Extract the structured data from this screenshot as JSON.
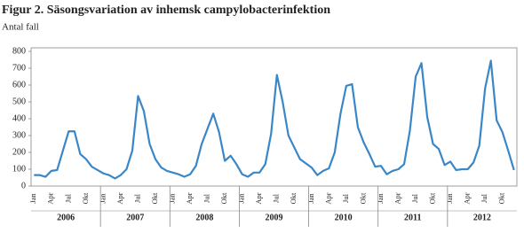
{
  "chart_data": {
    "type": "line",
    "title": "Figur 2. Säsongsvariation av inhemsk campylobacterinfektion",
    "y_label": "Antal fall",
    "categories": [
      "Jan",
      null,
      null,
      "Apr",
      null,
      null,
      "Jul",
      null,
      null,
      "Okt",
      null,
      null,
      "Jan",
      null,
      null,
      "Apr",
      null,
      null,
      "Jul",
      null,
      null,
      "Okt",
      null,
      null,
      "Jan",
      null,
      null,
      "Apr",
      null,
      null,
      "Jul",
      null,
      null,
      "Okt",
      null,
      null,
      "Jan",
      null,
      null,
      "Apr",
      null,
      null,
      "Jul",
      null,
      null,
      "Okt",
      null,
      null,
      "Jan",
      null,
      null,
      "Apr",
      null,
      null,
      "Jul",
      null,
      null,
      "Okt",
      null,
      null,
      "Jan",
      null,
      null,
      "Apr",
      null,
      null,
      "Jul",
      null,
      null,
      "Okt",
      null,
      null,
      "Jan",
      null,
      null,
      "Apr",
      null,
      null,
      "Jul",
      null,
      null,
      "Okt",
      null,
      null
    ],
    "years": [
      "2006",
      "2007",
      "2008",
      "2009",
      "2010",
      "2011",
      "2012"
    ],
    "series": [
      {
        "color": "#3a87c8",
        "values": [
          65,
          65,
          55,
          90,
          95,
          210,
          325,
          325,
          190,
          160,
          115,
          95,
          75,
          65,
          45,
          65,
          100,
          210,
          535,
          445,
          250,
          160,
          110,
          90,
          80,
          70,
          55,
          70,
          120,
          250,
          340,
          430,
          320,
          150,
          180,
          130,
          70,
          55,
          80,
          80,
          130,
          310,
          660,
          500,
          300,
          230,
          160,
          135,
          110,
          65,
          90,
          105,
          200,
          430,
          595,
          605,
          350,
          260,
          190,
          115,
          120,
          70,
          90,
          100,
          130,
          330,
          650,
          730,
          410,
          250,
          220,
          125,
          145,
          95,
          100,
          100,
          140,
          240,
          580,
          745,
          390,
          320,
          210,
          95
        ]
      }
    ],
    "ylim": [
      0,
      800
    ],
    "yticks": [
      0,
      100,
      200,
      300,
      400,
      500,
      600,
      700,
      800
    ]
  }
}
